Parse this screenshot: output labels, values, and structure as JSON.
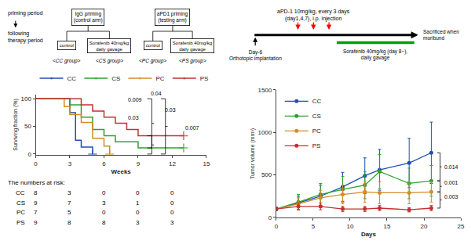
{
  "chart_data": [
    {
      "type": "diagram",
      "labels": [
        "priming period",
        "following\ntherapy period"
      ],
      "arms": [
        {
          "name": "IgG priming\n(control arm)",
          "groups": [
            {
              "treatment": "control",
              "name": "<CC group>"
            },
            {
              "treatment": "Sorafenib 40mg/kg\ndaily gavage",
              "name": "<CS group>"
            }
          ]
        },
        {
          "name": "aPD1 priming\n(testing arm)",
          "groups": [
            {
              "treatment": "control",
              "name": "<PC group>"
            },
            {
              "treatment": "Sorafenib 40mg/kg\ndaily gavage",
              "name": "<PS group>"
            }
          ]
        }
      ],
      "timeline": {
        "injection": {
          "text": "aPD-1 10mg/kg, every 3 days\n(day1,4,7), i.p. injection",
          "days": [
            1,
            4,
            7
          ],
          "color": "red"
        },
        "start": "Day-6\nOrthotopic implantation",
        "end": "Sacrificed when\nmoribund",
        "treatment": {
          "text": "Sorafenib 40mg/kg (day 8~),\ndaily gavage",
          "color": "#00a000"
        }
      }
    },
    {
      "type": "step",
      "xlabel": "Weeks",
      "ylabel": "Surviving fraction (%)",
      "xlim": [
        0,
        15
      ],
      "ylim": [
        -2,
        108
      ],
      "xticks": [
        0,
        3,
        6,
        9,
        12,
        15
      ],
      "yticks": [
        0,
        50,
        100
      ],
      "grid": false,
      "legend": "top",
      "series": [
        {
          "name": "CC",
          "color": "#1f4eb5",
          "marker": "+",
          "x": [
            0,
            3,
            3.5,
            4,
            5
          ],
          "values": [
            100,
            75,
            25,
            12.5,
            0
          ]
        },
        {
          "name": "CS",
          "color": "#2ea02e",
          "marker": "+",
          "x": [
            0,
            3,
            4,
            5,
            6,
            7,
            9,
            12,
            13
          ],
          "values": [
            100,
            88.9,
            66.7,
            44.4,
            33.3,
            22.2,
            11.1,
            11.1,
            11.1
          ]
        },
        {
          "name": "PC",
          "color": "#d48c25",
          "marker": "+",
          "x": [
            0,
            2.5,
            3,
            4,
            5,
            6,
            6.5
          ],
          "values": [
            100,
            85.7,
            71.4,
            57.1,
            28.6,
            14.3,
            0
          ]
        },
        {
          "name": "PS",
          "color": "#c43030",
          "marker": "+",
          "x": [
            0,
            3,
            4,
            5,
            6,
            7,
            8,
            9,
            10,
            11,
            12,
            13
          ],
          "values": [
            100,
            100,
            88.9,
            77.8,
            66.7,
            55.6,
            44.4,
            33.3,
            33.3,
            33.3,
            33.3,
            33.3
          ]
        }
      ],
      "annotations": [
        {
          "text": "0.009",
          "x": 8.0,
          "y": 90
        },
        {
          "text": "0.04",
          "x": 10.0,
          "y": 102
        },
        {
          "text": "0.03",
          "x": 8.0,
          "y": 58
        },
        {
          "text": "0.03",
          "x": 11.2,
          "y": 72
        },
        {
          "text": "0.007",
          "x": 13.0,
          "y": 40
        }
      ],
      "brackets": [
        {
          "x": [
            9.8,
            10.2
          ],
          "y": [
            100,
            11
          ]
        },
        {
          "x": [
            9.8,
            10.2
          ],
          "y": [
            33,
            0
          ]
        },
        {
          "x": [
            11.0,
            11.4
          ],
          "y": [
            100,
            0
          ]
        }
      ],
      "risk_table": {
        "title": "The numbers at risk:",
        "x": [
          0,
          3,
          6,
          9,
          12
        ],
        "rows": [
          {
            "name": "CC",
            "values": [
              8,
              3,
              0,
              0,
              0
            ]
          },
          {
            "name": "CS",
            "values": [
              9,
              7,
              3,
              1,
              0
            ]
          },
          {
            "name": "PC",
            "values": [
              7,
              5,
              0,
              0,
              0
            ]
          },
          {
            "name": "PS",
            "values": [
              9,
              8,
              8,
              3,
              3
            ]
          }
        ]
      }
    },
    {
      "type": "line",
      "xlabel": "Days",
      "ylabel": "Tumor volume (mm³)",
      "x": [
        0,
        3,
        6,
        9,
        12,
        14,
        18,
        21
      ],
      "xlim": [
        0,
        25
      ],
      "ylim": [
        0,
        1500
      ],
      "xticks": [
        0,
        5,
        10,
        15,
        20,
        25
      ],
      "yticks": [
        0,
        500,
        1000,
        1500
      ],
      "grid": false,
      "legend": "upper left",
      "series": [
        {
          "name": "CC",
          "color": "#1f4eb5",
          "marker": "o",
          "values": [
            100,
            170,
            250,
            360,
            490,
            560,
            640,
            760
          ],
          "errors": [
            20,
            80,
            130,
            170,
            210,
            240,
            290,
            360
          ]
        },
        {
          "name": "CS",
          "color": "#2ea02e",
          "marker": "o",
          "values": [
            100,
            180,
            270,
            330,
            380,
            540,
            400,
            430
          ],
          "errors": [
            20,
            90,
            130,
            150,
            160,
            200,
            180,
            180
          ]
        },
        {
          "name": "PC",
          "color": "#d48c25",
          "marker": "o",
          "values": [
            100,
            160,
            230,
            270,
            300,
            290,
            290,
            300
          ],
          "errors": [
            20,
            70,
            90,
            110,
            120,
            130,
            130,
            120
          ]
        },
        {
          "name": "PS",
          "color": "#c43030",
          "marker": "o",
          "values": [
            100,
            130,
            130,
            100,
            100,
            110,
            90,
            110
          ],
          "errors": [
            20,
            40,
            40,
            30,
            30,
            30,
            25,
            30
          ]
        }
      ],
      "annotations": [
        {
          "text": "0.014",
          "x": 22.0,
          "y": 590
        },
        {
          "text": "0.001",
          "x": 22.0,
          "y": 410
        },
        {
          "text": "0.003",
          "x": 22.0,
          "y": 240
        }
      ],
      "brackets": [
        {
          "x": [
            21.8,
            22.2
          ],
          "y": [
            760,
            430
          ]
        },
        {
          "x": [
            21.8,
            22.2
          ],
          "y": [
            430,
            300
          ]
        },
        {
          "x": [
            21.8,
            22.2
          ],
          "y": [
            300,
            110
          ]
        }
      ]
    }
  ]
}
